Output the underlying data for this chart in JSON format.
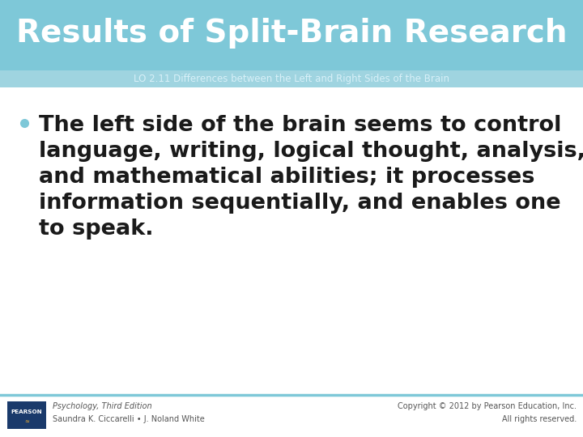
{
  "title": "Results of Split-Brain Research",
  "subtitle": "LO 2.11 Differences between the Left and Right Sides of the Brain",
  "title_bg_color": "#7ec8d8",
  "subtitle_bg_color": "#9fd4e0",
  "body_bg_color": "#ffffff",
  "title_color": "#ffffff",
  "subtitle_color": "#d8f0f8",
  "body_text_color": "#1a1a1a",
  "bullet_color": "#7ec8d8",
  "bullet_text_line1": "The left side of the brain seems to control",
  "bullet_text_line2": "language, writing, logical thought, analysis,",
  "bullet_text_line3": "and mathematical abilities; it processes",
  "bullet_text_line4": "information sequentially, and enables one",
  "bullet_text_line5": "to speak.",
  "footer_left_line1": "Psychology, Third Edition",
  "footer_left_line2": "Saundra K. Ciccarelli • J. Noland White",
  "footer_right_line1": "Copyright © 2012 by Pearson Education, Inc.",
  "footer_right_line2": "All rights reserved.",
  "footer_color": "#555555",
  "pearson_box_color": "#1a3a6b",
  "footer_separator_color": "#7ec8d8",
  "title_fontsize": 28,
  "subtitle_fontsize": 8.5,
  "body_fontsize": 19.5,
  "footer_fontsize": 7
}
